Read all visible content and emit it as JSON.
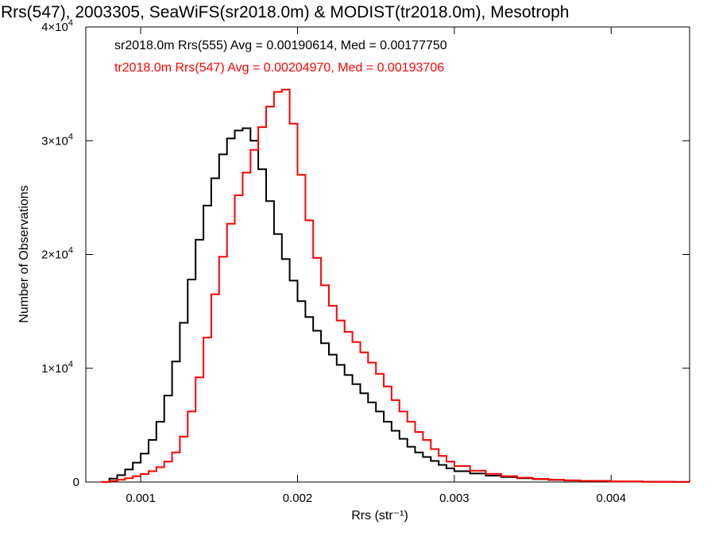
{
  "chart_data": {
    "type": "line",
    "title": "Rrs(547), 2003305, SeaWiFS(sr2018.0m) & MODIST(tr2018.0m), Mesotroph",
    "xlabel": "Rrs (str⁻¹)",
    "ylabel": "Number of Observations",
    "xlim": [
      0.00065,
      0.0045
    ],
    "ylim": [
      0,
      40000
    ],
    "x_ticks": [
      {
        "value": 0.001,
        "label": "0.001"
      },
      {
        "value": 0.002,
        "label": "0.002"
      },
      {
        "value": 0.003,
        "label": "0.003"
      },
      {
        "value": 0.004,
        "label": "0.004"
      }
    ],
    "y_ticks": [
      {
        "value": 0,
        "mant": "0",
        "exp": ""
      },
      {
        "value": 10000,
        "mant": "1×10",
        "exp": "4"
      },
      {
        "value": 20000,
        "mant": "2×10",
        "exp": "4"
      },
      {
        "value": 30000,
        "mant": "3×10",
        "exp": "4"
      },
      {
        "value": 40000,
        "mant": "4×10",
        "exp": "4"
      }
    ],
    "grid": false,
    "legend_position": "top-left",
    "series": [
      {
        "name": "sr2018.0m Rrs(555) Avg = 0.00190614, Med = 0.00177750",
        "color": "#000000",
        "step": true,
        "points": [
          [
            0.00075,
            0
          ],
          [
            0.0008,
            300
          ],
          [
            0.00085,
            600
          ],
          [
            0.0009,
            1100
          ],
          [
            0.00095,
            1700
          ],
          [
            0.001,
            2500
          ],
          [
            0.00105,
            3700
          ],
          [
            0.0011,
            5300
          ],
          [
            0.00115,
            7600
          ],
          [
            0.0012,
            10600
          ],
          [
            0.00125,
            14000
          ],
          [
            0.0013,
            17800
          ],
          [
            0.00135,
            21300
          ],
          [
            0.0014,
            24300
          ],
          [
            0.00145,
            26700
          ],
          [
            0.0015,
            28800
          ],
          [
            0.00155,
            30200
          ],
          [
            0.0016,
            30900
          ],
          [
            0.00165,
            31100
          ],
          [
            0.0017,
            30000
          ],
          [
            0.00175,
            27500
          ],
          [
            0.0018,
            24700
          ],
          [
            0.00185,
            21800
          ],
          [
            0.0019,
            19600
          ],
          [
            0.00195,
            17700
          ],
          [
            0.002,
            15900
          ],
          [
            0.00205,
            14500
          ],
          [
            0.0021,
            13300
          ],
          [
            0.00215,
            12200
          ],
          [
            0.0022,
            11200
          ],
          [
            0.00225,
            10300
          ],
          [
            0.0023,
            9400
          ],
          [
            0.00235,
            8600
          ],
          [
            0.0024,
            7800
          ],
          [
            0.00245,
            7000
          ],
          [
            0.0025,
            6200
          ],
          [
            0.00255,
            5300
          ],
          [
            0.0026,
            4500
          ],
          [
            0.00265,
            3800
          ],
          [
            0.0027,
            3100
          ],
          [
            0.00275,
            2600
          ],
          [
            0.0028,
            2200
          ],
          [
            0.00285,
            1850
          ],
          [
            0.0029,
            1500
          ],
          [
            0.00295,
            1200
          ],
          [
            0.003,
            950
          ],
          [
            0.0031,
            750
          ],
          [
            0.0032,
            560
          ],
          [
            0.0033,
            430
          ],
          [
            0.0034,
            330
          ],
          [
            0.0035,
            250
          ],
          [
            0.0036,
            180
          ],
          [
            0.0037,
            130
          ],
          [
            0.0038,
            90
          ],
          [
            0.004,
            40
          ],
          [
            0.0042,
            15
          ],
          [
            0.0044,
            5
          ],
          [
            0.0045,
            0
          ]
        ]
      },
      {
        "name": "tr2018.0m Rrs(547) Avg = 0.00204970, Med = 0.00193706",
        "color": "#ff0000",
        "step": true,
        "points": [
          [
            0.00075,
            0
          ],
          [
            0.0008,
            100
          ],
          [
            0.00085,
            200
          ],
          [
            0.0009,
            330
          ],
          [
            0.00095,
            500
          ],
          [
            0.001,
            700
          ],
          [
            0.00105,
            950
          ],
          [
            0.0011,
            1300
          ],
          [
            0.00115,
            1800
          ],
          [
            0.0012,
            2600
          ],
          [
            0.00125,
            4000
          ],
          [
            0.0013,
            6200
          ],
          [
            0.00135,
            9200
          ],
          [
            0.0014,
            12700
          ],
          [
            0.00145,
            16500
          ],
          [
            0.0015,
            19800
          ],
          [
            0.00155,
            22700
          ],
          [
            0.0016,
            25200
          ],
          [
            0.00165,
            27200
          ],
          [
            0.0017,
            29200
          ],
          [
            0.00175,
            31200
          ],
          [
            0.0018,
            33000
          ],
          [
            0.00185,
            34300
          ],
          [
            0.0019,
            34500
          ],
          [
            0.00195,
            31500
          ],
          [
            0.002,
            27000
          ],
          [
            0.00205,
            23000
          ],
          [
            0.0021,
            19700
          ],
          [
            0.00215,
            17300
          ],
          [
            0.0022,
            15500
          ],
          [
            0.00225,
            14200
          ],
          [
            0.0023,
            13200
          ],
          [
            0.00235,
            12300
          ],
          [
            0.0024,
            11400
          ],
          [
            0.00245,
            10500
          ],
          [
            0.0025,
            9500
          ],
          [
            0.00255,
            8400
          ],
          [
            0.0026,
            7200
          ],
          [
            0.00265,
            6200
          ],
          [
            0.0027,
            5300
          ],
          [
            0.00275,
            4400
          ],
          [
            0.0028,
            3700
          ],
          [
            0.00285,
            2900
          ],
          [
            0.0029,
            2300
          ],
          [
            0.00295,
            1800
          ],
          [
            0.003,
            1400
          ],
          [
            0.0031,
            1000
          ],
          [
            0.0032,
            720
          ],
          [
            0.0033,
            520
          ],
          [
            0.0034,
            380
          ],
          [
            0.0035,
            280
          ],
          [
            0.0036,
            200
          ],
          [
            0.0037,
            150
          ],
          [
            0.0038,
            100
          ],
          [
            0.004,
            50
          ],
          [
            0.0042,
            20
          ],
          [
            0.0044,
            5
          ],
          [
            0.0045,
            0
          ]
        ]
      }
    ]
  }
}
